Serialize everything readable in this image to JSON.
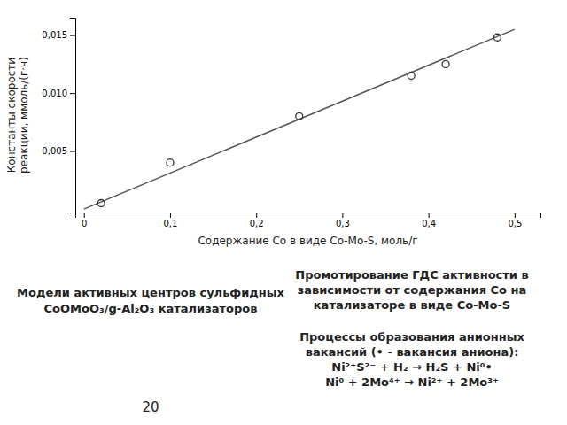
{
  "chart_data": {
    "type": "scatter",
    "title": "Модели активных центров сульфидных\nCoOMoO₃/g-Al₂O₃ катализаторов",
    "x_label": "Содержание Co в виде Co-Mo-S, моль/г",
    "y_label": "Константы скорости\nреакции, ммоль/(г·ч)",
    "series": [
      {
        "type": "line",
        "color": "#555555",
        "line_style": "solid",
        "x": [
          0.0,
          0.5
        ],
        "values": [
          0.0,
          0.0155
        ]
      },
      {
        "type": "scatter",
        "color": "#333333",
        "marker": "open-circle",
        "x": [
          0.02,
          0.1,
          0.25,
          0.38,
          0.42,
          0.48
        ],
        "values": [
          0.0005,
          0.004,
          0.008,
          0.0115,
          0.0125,
          0.0148
        ]
      }
    ],
    "xlim": [
      -0.01,
      0.53
    ],
    "ylim": [
      -0.0003,
      0.0165
    ],
    "xticks": [
      0,
      {
        "value": 0.1,
        "label": "0,1"
      },
      {
        "value": 0.2,
        "label": "0,2"
      },
      {
        "value": 0.3,
        "label": "0,3"
      },
      {
        "value": 0.4,
        "label": "0,4"
      },
      {
        "value": 0.5,
        "label": "0,5"
      }
    ],
    "yticks": [
      {
        "value": 0.005,
        "label": "0,005"
      },
      {
        "value": 0.01,
        "label": "0,010"
      },
      {
        "value": 0.015,
        "label": "0,015"
      }
    ],
    "grid": false,
    "annotations": [
      "Промотирование ГДС активности в\nзависимости от содержания Co на\nкатализаторе в виде Co-Mo-S",
      "Процессы образования анионных\nвакансий (• - вакансия аниона):\nNi²⁺S²⁻ + H₂ → H₂S + Ni⁰•\nNi⁰ + 2Mo⁴⁺ → Ni²⁺ + 2Mo³⁺",
      "20"
    ]
  }
}
